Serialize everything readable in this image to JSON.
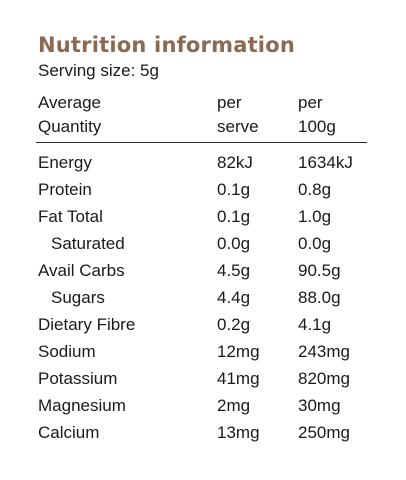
{
  "title": "Nutrition information",
  "serving_size": "Serving size: 5g",
  "header": {
    "col1_line1": "Average",
    "col1_line2": "Quantity",
    "col2_line1": "per",
    "col2_line2": "serve",
    "col3_line1": "per",
    "col3_line2": "100g"
  },
  "rows": [
    {
      "name": "Energy",
      "per_serve": "82kJ",
      "per_100g": "1634kJ"
    },
    {
      "name": "Protein",
      "per_serve": "0.1g",
      "per_100g": "0.8g"
    },
    {
      "name": "Fat Total",
      "per_serve": "0.1g",
      "per_100g": "1.0g"
    },
    {
      "name": "Saturated",
      "per_serve": "0.0g",
      "per_100g": "0.0g"
    },
    {
      "name": "Avail Carbs",
      "per_serve": "4.5g",
      "per_100g": "90.5g"
    },
    {
      "name": "Sugars",
      "per_serve": "4.4g",
      "per_100g": "88.0g"
    },
    {
      "name": "Dietary Fibre",
      "per_serve": "0.2g",
      "per_100g": "4.1g"
    },
    {
      "name": "Sodium",
      "per_serve": "12mg",
      "per_100g": "243mg"
    },
    {
      "name": "Potassium",
      "per_serve": "41mg",
      "per_100g": "820mg"
    },
    {
      "name": "Magnesium",
      "per_serve": "2mg",
      "per_100g": "30mg"
    },
    {
      "name": "Calcium",
      "per_serve": "13mg",
      "per_100g": "250mg"
    }
  ]
}
